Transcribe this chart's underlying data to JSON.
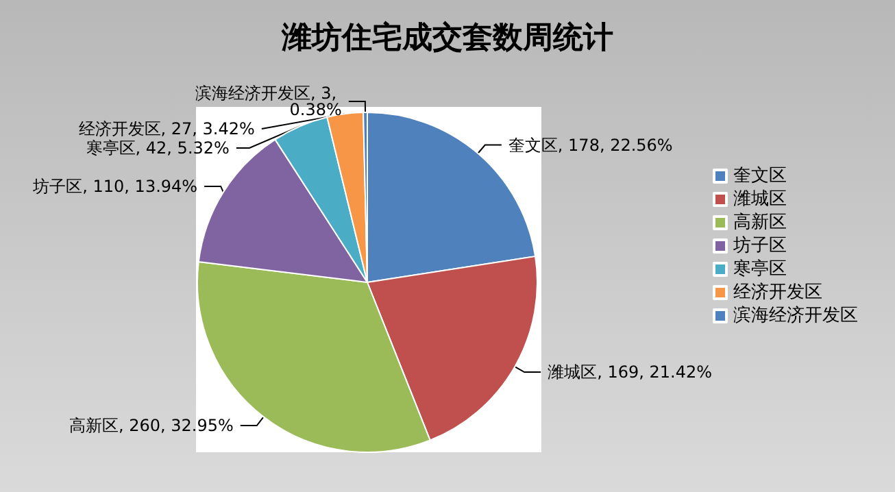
{
  "chart_data": {
    "type": "pie",
    "title": "潍坊住宅成交套数周统计",
    "categories": [
      "奎文区",
      "潍城区",
      "高新区",
      "坊子区",
      "寒亭区",
      "经济开发区",
      "滨海经济开发区"
    ],
    "values": [
      178,
      169,
      260,
      110,
      42,
      27,
      3
    ],
    "value_labels": [
      "奎文区, 178, 22.56%",
      "潍城区, 169, 21.42%",
      "高新区, 260, 32.95%",
      "坊子区, 110, 13.94%",
      "寒亭区, 42, 5.32%",
      "经济开发区, 27, 3.42%",
      "滨海经济开发区, 3, 0.38%"
    ],
    "colors": [
      "#4f81bd",
      "#c0504d",
      "#9bbb59",
      "#8064a2",
      "#4bacc6",
      "#f79646",
      "#4f81bd"
    ],
    "legend": "right"
  }
}
